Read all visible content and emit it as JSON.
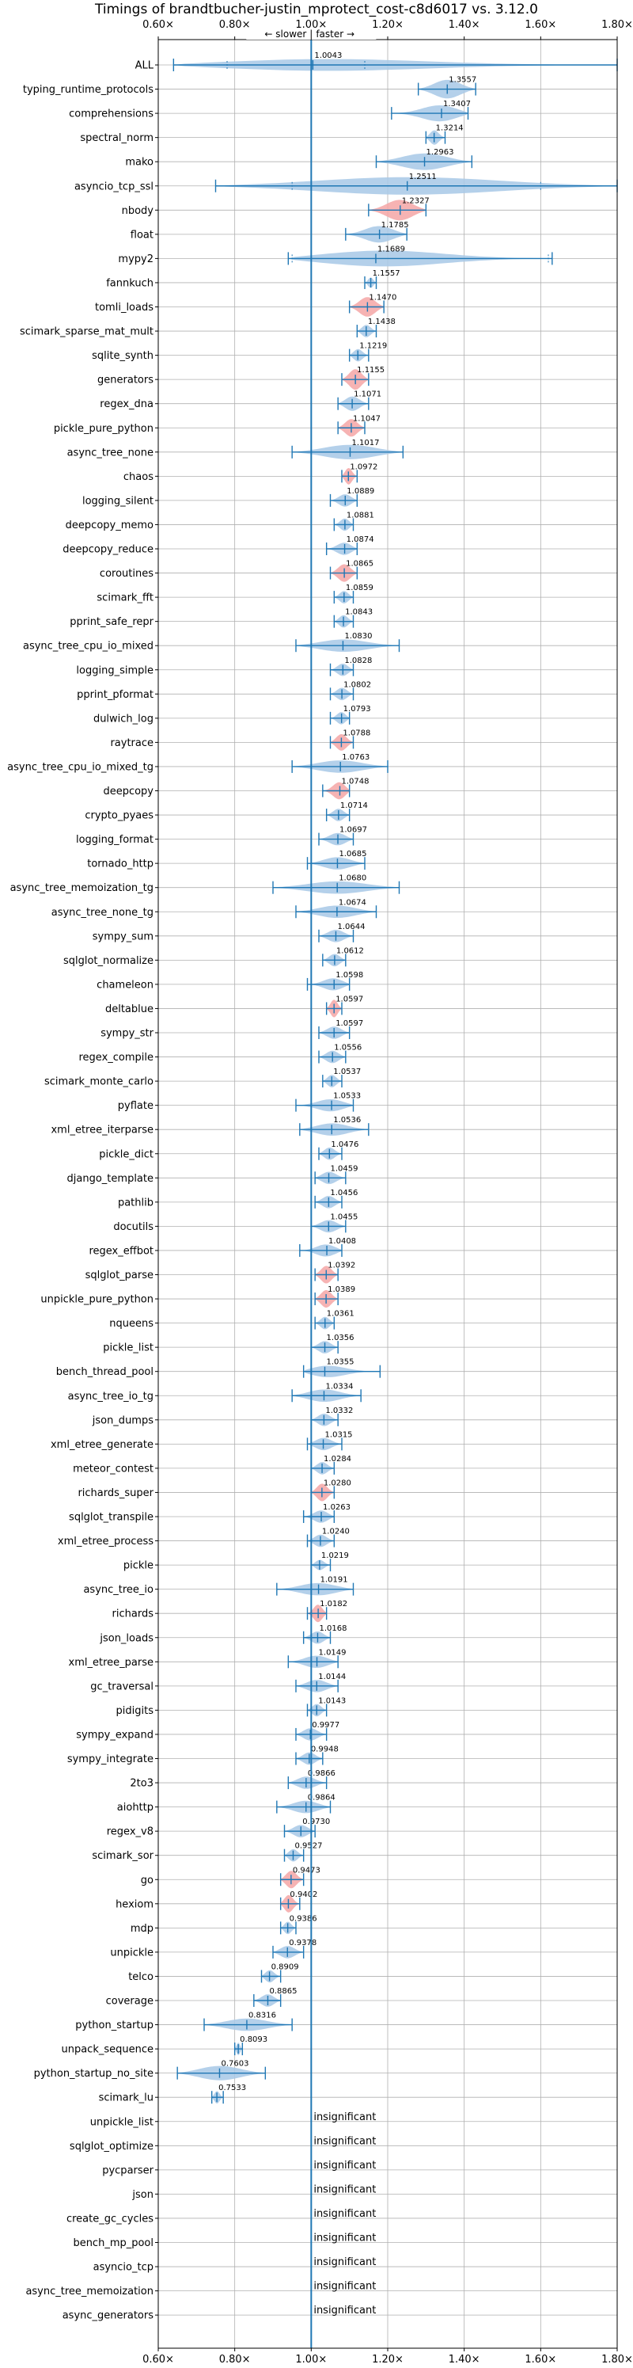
{
  "chart_data": {
    "type": "violin",
    "title": "Timings of brandtbucher-justin_mprotect_cost-c8d6017 vs. 3.12.0",
    "direction_labels": {
      "slower": "← slower",
      "separator": "|",
      "faster": "faster →"
    },
    "insignificant_label": "insignificant",
    "xlim": [
      0.6,
      1.8
    ],
    "x_ticks": [
      0.6,
      0.8,
      1.0,
      1.2,
      1.4,
      1.6,
      1.8
    ],
    "x_tick_labels": [
      "0.60×",
      "0.80×",
      "1.00×",
      "1.20×",
      "1.40×",
      "1.60×",
      "1.80×"
    ],
    "reference_line": 1.0,
    "grid": true,
    "colors": {
      "normal": "#a7c8e6",
      "highlight": "#f4a6a6",
      "line": "#1f77b4"
    },
    "benchmarks": [
      {
        "name": "ALL",
        "value": 1.0043,
        "value_label": "1.0043",
        "min": 0.64,
        "max": 1.8,
        "p1": 0.78,
        "p2": 1.14,
        "w": 0.6,
        "highlight": false
      },
      {
        "name": "typing_runtime_protocols",
        "value": 1.3557,
        "value_label": "1.3557",
        "min": 1.28,
        "max": 1.43,
        "w": 0.9,
        "highlight": false
      },
      {
        "name": "comprehensions",
        "value": 1.3407,
        "value_label": "1.3407",
        "min": 1.21,
        "max": 1.41,
        "w": 0.8,
        "highlight": false
      },
      {
        "name": "spectral_norm",
        "value": 1.3214,
        "value_label": "1.3214",
        "min": 1.3,
        "max": 1.35,
        "w": 0.7,
        "highlight": false
      },
      {
        "name": "mako",
        "value": 1.2963,
        "value_label": "1.2963",
        "min": 1.17,
        "max": 1.42,
        "w": 0.8,
        "highlight": false
      },
      {
        "name": "asyncio_tcp_ssl",
        "value": 1.2511,
        "value_label": "1.2511",
        "min": 0.75,
        "max": 1.8,
        "p1": 0.95,
        "p2": 1.6,
        "w": 0.85,
        "highlight": false
      },
      {
        "name": "nbody",
        "value": 1.2327,
        "value_label": "1.2327",
        "min": 1.15,
        "max": 1.3,
        "w": 1.0,
        "highlight": true
      },
      {
        "name": "float",
        "value": 1.1785,
        "value_label": "1.1785",
        "min": 1.09,
        "max": 1.25,
        "w": 0.8,
        "highlight": false
      },
      {
        "name": "mypy2",
        "value": 1.1689,
        "value_label": "1.1689",
        "min": 0.94,
        "max": 1.63,
        "p1": 0.95,
        "p2": 1.62,
        "w": 0.8,
        "highlight": false
      },
      {
        "name": "fannkuch",
        "value": 1.1557,
        "value_label": "1.1557",
        "min": 1.14,
        "max": 1.17,
        "w": 0.5,
        "highlight": false
      },
      {
        "name": "tomli_loads",
        "value": 1.147,
        "value_label": "1.1470",
        "min": 1.1,
        "max": 1.19,
        "w": 0.95,
        "highlight": true
      },
      {
        "name": "scimark_sparse_mat_mult",
        "value": 1.1438,
        "value_label": "1.1438",
        "min": 1.12,
        "max": 1.17,
        "w": 0.6,
        "highlight": false
      },
      {
        "name": "sqlite_synth",
        "value": 1.1219,
        "value_label": "1.1219",
        "min": 1.1,
        "max": 1.15,
        "w": 0.6,
        "highlight": false
      },
      {
        "name": "generators",
        "value": 1.1155,
        "value_label": "1.1155",
        "min": 1.08,
        "max": 1.15,
        "w": 1.0,
        "highlight": true
      },
      {
        "name": "regex_dna",
        "value": 1.1071,
        "value_label": "1.1071",
        "min": 1.07,
        "max": 1.15,
        "w": 0.7,
        "highlight": false
      },
      {
        "name": "pickle_pure_python",
        "value": 1.1047,
        "value_label": "1.1047",
        "min": 1.07,
        "max": 1.14,
        "w": 0.85,
        "highlight": true
      },
      {
        "name": "async_tree_none",
        "value": 1.1017,
        "value_label": "1.1017",
        "min": 0.95,
        "max": 1.24,
        "w": 0.7,
        "highlight": false
      },
      {
        "name": "chaos",
        "value": 1.0972,
        "value_label": "1.0972",
        "min": 1.08,
        "max": 1.12,
        "w": 0.8,
        "highlight": true
      },
      {
        "name": "logging_silent",
        "value": 1.0889,
        "value_label": "1.0889",
        "min": 1.05,
        "max": 1.12,
        "w": 0.6,
        "highlight": false
      },
      {
        "name": "deepcopy_memo",
        "value": 1.0881,
        "value_label": "1.0881",
        "min": 1.06,
        "max": 1.11,
        "w": 0.6,
        "highlight": false
      },
      {
        "name": "deepcopy_reduce",
        "value": 1.0874,
        "value_label": "1.0874",
        "min": 1.04,
        "max": 1.12,
        "w": 0.6,
        "highlight": false
      },
      {
        "name": "coroutines",
        "value": 1.0865,
        "value_label": "1.0865",
        "min": 1.05,
        "max": 1.12,
        "w": 0.85,
        "highlight": true
      },
      {
        "name": "scimark_fft",
        "value": 1.0859,
        "value_label": "1.0859",
        "min": 1.06,
        "max": 1.11,
        "w": 0.6,
        "highlight": false
      },
      {
        "name": "pprint_safe_repr",
        "value": 1.0843,
        "value_label": "1.0843",
        "min": 1.06,
        "max": 1.11,
        "w": 0.6,
        "highlight": false
      },
      {
        "name": "async_tree_cpu_io_mixed",
        "value": 1.083,
        "value_label": "1.0830",
        "min": 0.96,
        "max": 1.23,
        "w": 0.6,
        "highlight": false
      },
      {
        "name": "logging_simple",
        "value": 1.0828,
        "value_label": "1.0828",
        "min": 1.05,
        "max": 1.11,
        "w": 0.6,
        "highlight": false
      },
      {
        "name": "pprint_pformat",
        "value": 1.0802,
        "value_label": "1.0802",
        "min": 1.05,
        "max": 1.11,
        "w": 0.6,
        "highlight": false
      },
      {
        "name": "dulwich_log",
        "value": 1.0793,
        "value_label": "1.0793",
        "min": 1.05,
        "max": 1.1,
        "w": 0.6,
        "highlight": false
      },
      {
        "name": "raytrace",
        "value": 1.0788,
        "value_label": "1.0788",
        "min": 1.05,
        "max": 1.11,
        "w": 0.8,
        "highlight": true
      },
      {
        "name": "async_tree_cpu_io_mixed_tg",
        "value": 1.0763,
        "value_label": "1.0763",
        "min": 0.95,
        "max": 1.2,
        "w": 0.6,
        "highlight": false
      },
      {
        "name": "deepcopy",
        "value": 1.0748,
        "value_label": "1.0748",
        "min": 1.03,
        "max": 1.1,
        "w": 0.85,
        "highlight": true
      },
      {
        "name": "crypto_pyaes",
        "value": 1.0714,
        "value_label": "1.0714",
        "min": 1.04,
        "max": 1.1,
        "w": 0.6,
        "highlight": false
      },
      {
        "name": "logging_format",
        "value": 1.0697,
        "value_label": "1.0697",
        "min": 1.02,
        "max": 1.11,
        "w": 0.6,
        "highlight": false
      },
      {
        "name": "tornado_http",
        "value": 1.0685,
        "value_label": "1.0685",
        "min": 0.99,
        "max": 1.14,
        "w": 0.6,
        "highlight": false
      },
      {
        "name": "async_tree_memoization_tg",
        "value": 1.068,
        "value_label": "1.0680",
        "min": 0.9,
        "max": 1.23,
        "w": 0.6,
        "highlight": false
      },
      {
        "name": "async_tree_none_tg",
        "value": 1.0674,
        "value_label": "1.0674",
        "min": 0.96,
        "max": 1.17,
        "w": 0.6,
        "highlight": false
      },
      {
        "name": "sympy_sum",
        "value": 1.0644,
        "value_label": "1.0644",
        "min": 1.02,
        "max": 1.11,
        "w": 0.6,
        "highlight": false
      },
      {
        "name": "sqlglot_normalize",
        "value": 1.0612,
        "value_label": "1.0612",
        "min": 1.03,
        "max": 1.09,
        "w": 0.6,
        "highlight": false
      },
      {
        "name": "chameleon",
        "value": 1.0598,
        "value_label": "1.0598",
        "min": 0.99,
        "max": 1.1,
        "w": 0.6,
        "highlight": false
      },
      {
        "name": "deltablue",
        "value": 1.0597,
        "value_label": "1.0597",
        "min": 1.04,
        "max": 1.08,
        "w": 0.85,
        "highlight": true
      },
      {
        "name": "sympy_str",
        "value": 1.0597,
        "value_label": "1.0597",
        "min": 1.02,
        "max": 1.1,
        "w": 0.6,
        "highlight": false
      },
      {
        "name": "regex_compile",
        "value": 1.0556,
        "value_label": "1.0556",
        "min": 1.02,
        "max": 1.09,
        "w": 0.6,
        "highlight": false
      },
      {
        "name": "scimark_monte_carlo",
        "value": 1.0537,
        "value_label": "1.0537",
        "min": 1.03,
        "max": 1.08,
        "w": 0.6,
        "highlight": false
      },
      {
        "name": "pyflate",
        "value": 1.0533,
        "value_label": "1.0533",
        "min": 0.96,
        "max": 1.11,
        "w": 0.6,
        "highlight": false
      },
      {
        "name": "xml_etree_iterparse",
        "value": 1.0536,
        "value_label": "1.0536",
        "min": 0.97,
        "max": 1.15,
        "w": 0.6,
        "highlight": false
      },
      {
        "name": "pickle_dict",
        "value": 1.0476,
        "value_label": "1.0476",
        "min": 1.02,
        "max": 1.08,
        "w": 0.6,
        "highlight": false
      },
      {
        "name": "django_template",
        "value": 1.0459,
        "value_label": "1.0459",
        "min": 1.01,
        "max": 1.09,
        "w": 0.6,
        "highlight": false
      },
      {
        "name": "pathlib",
        "value": 1.0456,
        "value_label": "1.0456",
        "min": 1.01,
        "max": 1.08,
        "w": 0.6,
        "highlight": false
      },
      {
        "name": "docutils",
        "value": 1.0455,
        "value_label": "1.0455",
        "min": 1.0,
        "max": 1.09,
        "w": 0.6,
        "highlight": false
      },
      {
        "name": "regex_effbot",
        "value": 1.0408,
        "value_label": "1.0408",
        "min": 0.97,
        "max": 1.08,
        "w": 0.6,
        "highlight": false
      },
      {
        "name": "sqlglot_parse",
        "value": 1.0392,
        "value_label": "1.0392",
        "min": 1.01,
        "max": 1.07,
        "w": 0.85,
        "highlight": true
      },
      {
        "name": "unpickle_pure_python",
        "value": 1.0389,
        "value_label": "1.0389",
        "min": 1.01,
        "max": 1.07,
        "w": 0.85,
        "highlight": true
      },
      {
        "name": "nqueens",
        "value": 1.0361,
        "value_label": "1.0361",
        "min": 1.01,
        "max": 1.06,
        "w": 0.6,
        "highlight": false
      },
      {
        "name": "pickle_list",
        "value": 1.0356,
        "value_label": "1.0356",
        "min": 1.0,
        "max": 1.07,
        "w": 0.6,
        "highlight": false
      },
      {
        "name": "bench_thread_pool",
        "value": 1.0355,
        "value_label": "1.0355",
        "min": 0.98,
        "max": 1.18,
        "w": 0.6,
        "highlight": false
      },
      {
        "name": "async_tree_io_tg",
        "value": 1.0334,
        "value_label": "1.0334",
        "min": 0.95,
        "max": 1.13,
        "w": 0.6,
        "highlight": false
      },
      {
        "name": "json_dumps",
        "value": 1.0332,
        "value_label": "1.0332",
        "min": 1.0,
        "max": 1.07,
        "w": 0.6,
        "highlight": false
      },
      {
        "name": "xml_etree_generate",
        "value": 1.0315,
        "value_label": "1.0315",
        "min": 0.99,
        "max": 1.08,
        "w": 0.6,
        "highlight": false
      },
      {
        "name": "meteor_contest",
        "value": 1.0284,
        "value_label": "1.0284",
        "min": 1.0,
        "max": 1.06,
        "w": 0.6,
        "highlight": false
      },
      {
        "name": "richards_super",
        "value": 1.028,
        "value_label": "1.0280",
        "min": 1.0,
        "max": 1.06,
        "w": 0.85,
        "highlight": true
      },
      {
        "name": "sqlglot_transpile",
        "value": 1.0263,
        "value_label": "1.0263",
        "min": 0.98,
        "max": 1.06,
        "w": 0.6,
        "highlight": false
      },
      {
        "name": "xml_etree_process",
        "value": 1.024,
        "value_label": "1.0240",
        "min": 0.99,
        "max": 1.06,
        "w": 0.6,
        "highlight": false
      },
      {
        "name": "pickle",
        "value": 1.0219,
        "value_label": "1.0219",
        "min": 1.0,
        "max": 1.05,
        "w": 0.5,
        "highlight": false
      },
      {
        "name": "async_tree_io",
        "value": 1.0191,
        "value_label": "1.0191",
        "min": 0.91,
        "max": 1.11,
        "w": 0.6,
        "highlight": false
      },
      {
        "name": "richards",
        "value": 1.0182,
        "value_label": "1.0182",
        "min": 0.99,
        "max": 1.04,
        "w": 0.85,
        "highlight": true
      },
      {
        "name": "json_loads",
        "value": 1.0168,
        "value_label": "1.0168",
        "min": 0.98,
        "max": 1.05,
        "w": 0.6,
        "highlight": false
      },
      {
        "name": "xml_etree_parse",
        "value": 1.0149,
        "value_label": "1.0149",
        "min": 0.94,
        "max": 1.07,
        "w": 0.6,
        "highlight": false
      },
      {
        "name": "gc_traversal",
        "value": 1.0144,
        "value_label": "1.0144",
        "min": 0.96,
        "max": 1.07,
        "w": 0.6,
        "highlight": false
      },
      {
        "name": "pidigits",
        "value": 1.0143,
        "value_label": "1.0143",
        "min": 0.99,
        "max": 1.04,
        "w": 0.6,
        "highlight": false
      },
      {
        "name": "sympy_expand",
        "value": 0.9977,
        "value_label": "0.9977",
        "min": 0.96,
        "max": 1.04,
        "w": 0.6,
        "highlight": false
      },
      {
        "name": "sympy_integrate",
        "value": 0.9948,
        "value_label": "0.9948",
        "min": 0.96,
        "max": 1.03,
        "w": 0.6,
        "highlight": false
      },
      {
        "name": "2to3",
        "value": 0.9866,
        "value_label": "0.9866",
        "min": 0.94,
        "max": 1.04,
        "w": 0.6,
        "highlight": false
      },
      {
        "name": "aiohttp",
        "value": 0.9864,
        "value_label": "0.9864",
        "min": 0.91,
        "max": 1.05,
        "w": 0.6,
        "highlight": false
      },
      {
        "name": "regex_v8",
        "value": 0.973,
        "value_label": "0.9730",
        "min": 0.93,
        "max": 1.01,
        "w": 0.6,
        "highlight": false
      },
      {
        "name": "scimark_sor",
        "value": 0.9527,
        "value_label": "0.9527",
        "min": 0.93,
        "max": 0.98,
        "w": 0.6,
        "highlight": false
      },
      {
        "name": "go",
        "value": 0.9473,
        "value_label": "0.9473",
        "min": 0.92,
        "max": 0.98,
        "w": 0.85,
        "highlight": true
      },
      {
        "name": "hexiom",
        "value": 0.9402,
        "value_label": "0.9402",
        "min": 0.92,
        "max": 0.97,
        "w": 0.85,
        "highlight": true
      },
      {
        "name": "mdp",
        "value": 0.9386,
        "value_label": "0.9386",
        "min": 0.92,
        "max": 0.96,
        "w": 0.6,
        "highlight": false
      },
      {
        "name": "unpickle",
        "value": 0.9378,
        "value_label": "0.9378",
        "min": 0.9,
        "max": 0.98,
        "w": 0.6,
        "highlight": false
      },
      {
        "name": "telco",
        "value": 0.8909,
        "value_label": "0.8909",
        "min": 0.87,
        "max": 0.92,
        "w": 0.6,
        "highlight": false
      },
      {
        "name": "coverage",
        "value": 0.8865,
        "value_label": "0.8865",
        "min": 0.85,
        "max": 0.92,
        "w": 0.6,
        "highlight": false
      },
      {
        "name": "python_startup",
        "value": 0.8316,
        "value_label": "0.8316",
        "min": 0.72,
        "max": 0.95,
        "w": 0.6,
        "highlight": false
      },
      {
        "name": "unpack_sequence",
        "value": 0.8093,
        "value_label": "0.8093",
        "min": 0.8,
        "max": 0.82,
        "w": 0.6,
        "highlight": false
      },
      {
        "name": "python_startup_no_site",
        "value": 0.7603,
        "value_label": "0.7603",
        "min": 0.65,
        "max": 0.88,
        "w": 0.7,
        "highlight": false
      },
      {
        "name": "scimark_lu",
        "value": 0.7533,
        "value_label": "0.7533",
        "min": 0.74,
        "max": 0.77,
        "w": 0.6,
        "highlight": false
      },
      {
        "name": "unpickle_list",
        "insignificant": true
      },
      {
        "name": "sqlglot_optimize",
        "insignificant": true
      },
      {
        "name": "pycparser",
        "insignificant": true
      },
      {
        "name": "json",
        "insignificant": true
      },
      {
        "name": "create_gc_cycles",
        "insignificant": true
      },
      {
        "name": "bench_mp_pool",
        "insignificant": true
      },
      {
        "name": "asyncio_tcp",
        "insignificant": true
      },
      {
        "name": "async_tree_memoization",
        "insignificant": true
      },
      {
        "name": "async_generators",
        "insignificant": true
      }
    ]
  }
}
